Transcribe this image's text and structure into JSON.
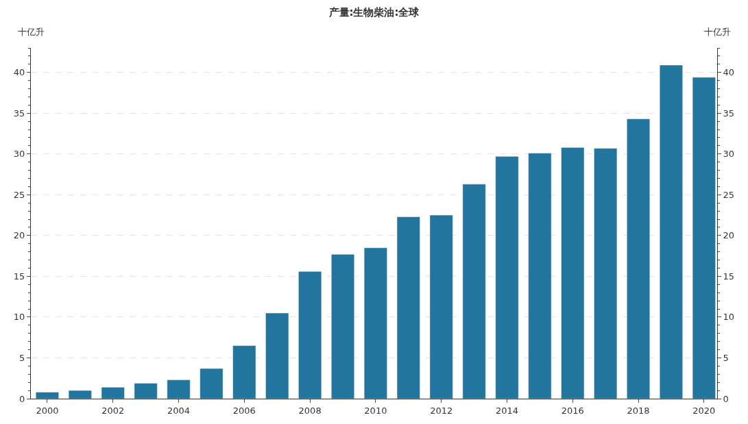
{
  "chart_data": {
    "type": "bar",
    "title": "产量:生物柴油:全球",
    "ylabel": "十亿升",
    "y2label": "十亿升",
    "x": [
      2000,
      2001,
      2002,
      2003,
      2004,
      2005,
      2006,
      2007,
      2008,
      2009,
      2010,
      2011,
      2012,
      2013,
      2014,
      2015,
      2016,
      2017,
      2018,
      2019,
      2020
    ],
    "values": [
      0.8,
      1.0,
      1.4,
      1.9,
      2.3,
      3.7,
      6.5,
      10.5,
      15.6,
      17.7,
      18.5,
      22.3,
      22.5,
      26.3,
      29.7,
      30.1,
      30.8,
      30.7,
      34.3,
      40.9,
      39.4
    ],
    "color": "#21759f",
    "xlim": [
      1999.5,
      2020.4
    ],
    "xticks": [
      2000,
      2002,
      2004,
      2006,
      2008,
      2010,
      2012,
      2014,
      2016,
      2018,
      2020
    ],
    "ylim": [
      0,
      43
    ],
    "yticks": [
      0,
      5,
      10,
      15,
      20,
      25,
      30,
      35,
      40
    ],
    "y2lim": [
      0,
      43
    ],
    "y2ticks": [
      0,
      5,
      10,
      15,
      20,
      25,
      30,
      35,
      40
    ],
    "grid": "y"
  }
}
